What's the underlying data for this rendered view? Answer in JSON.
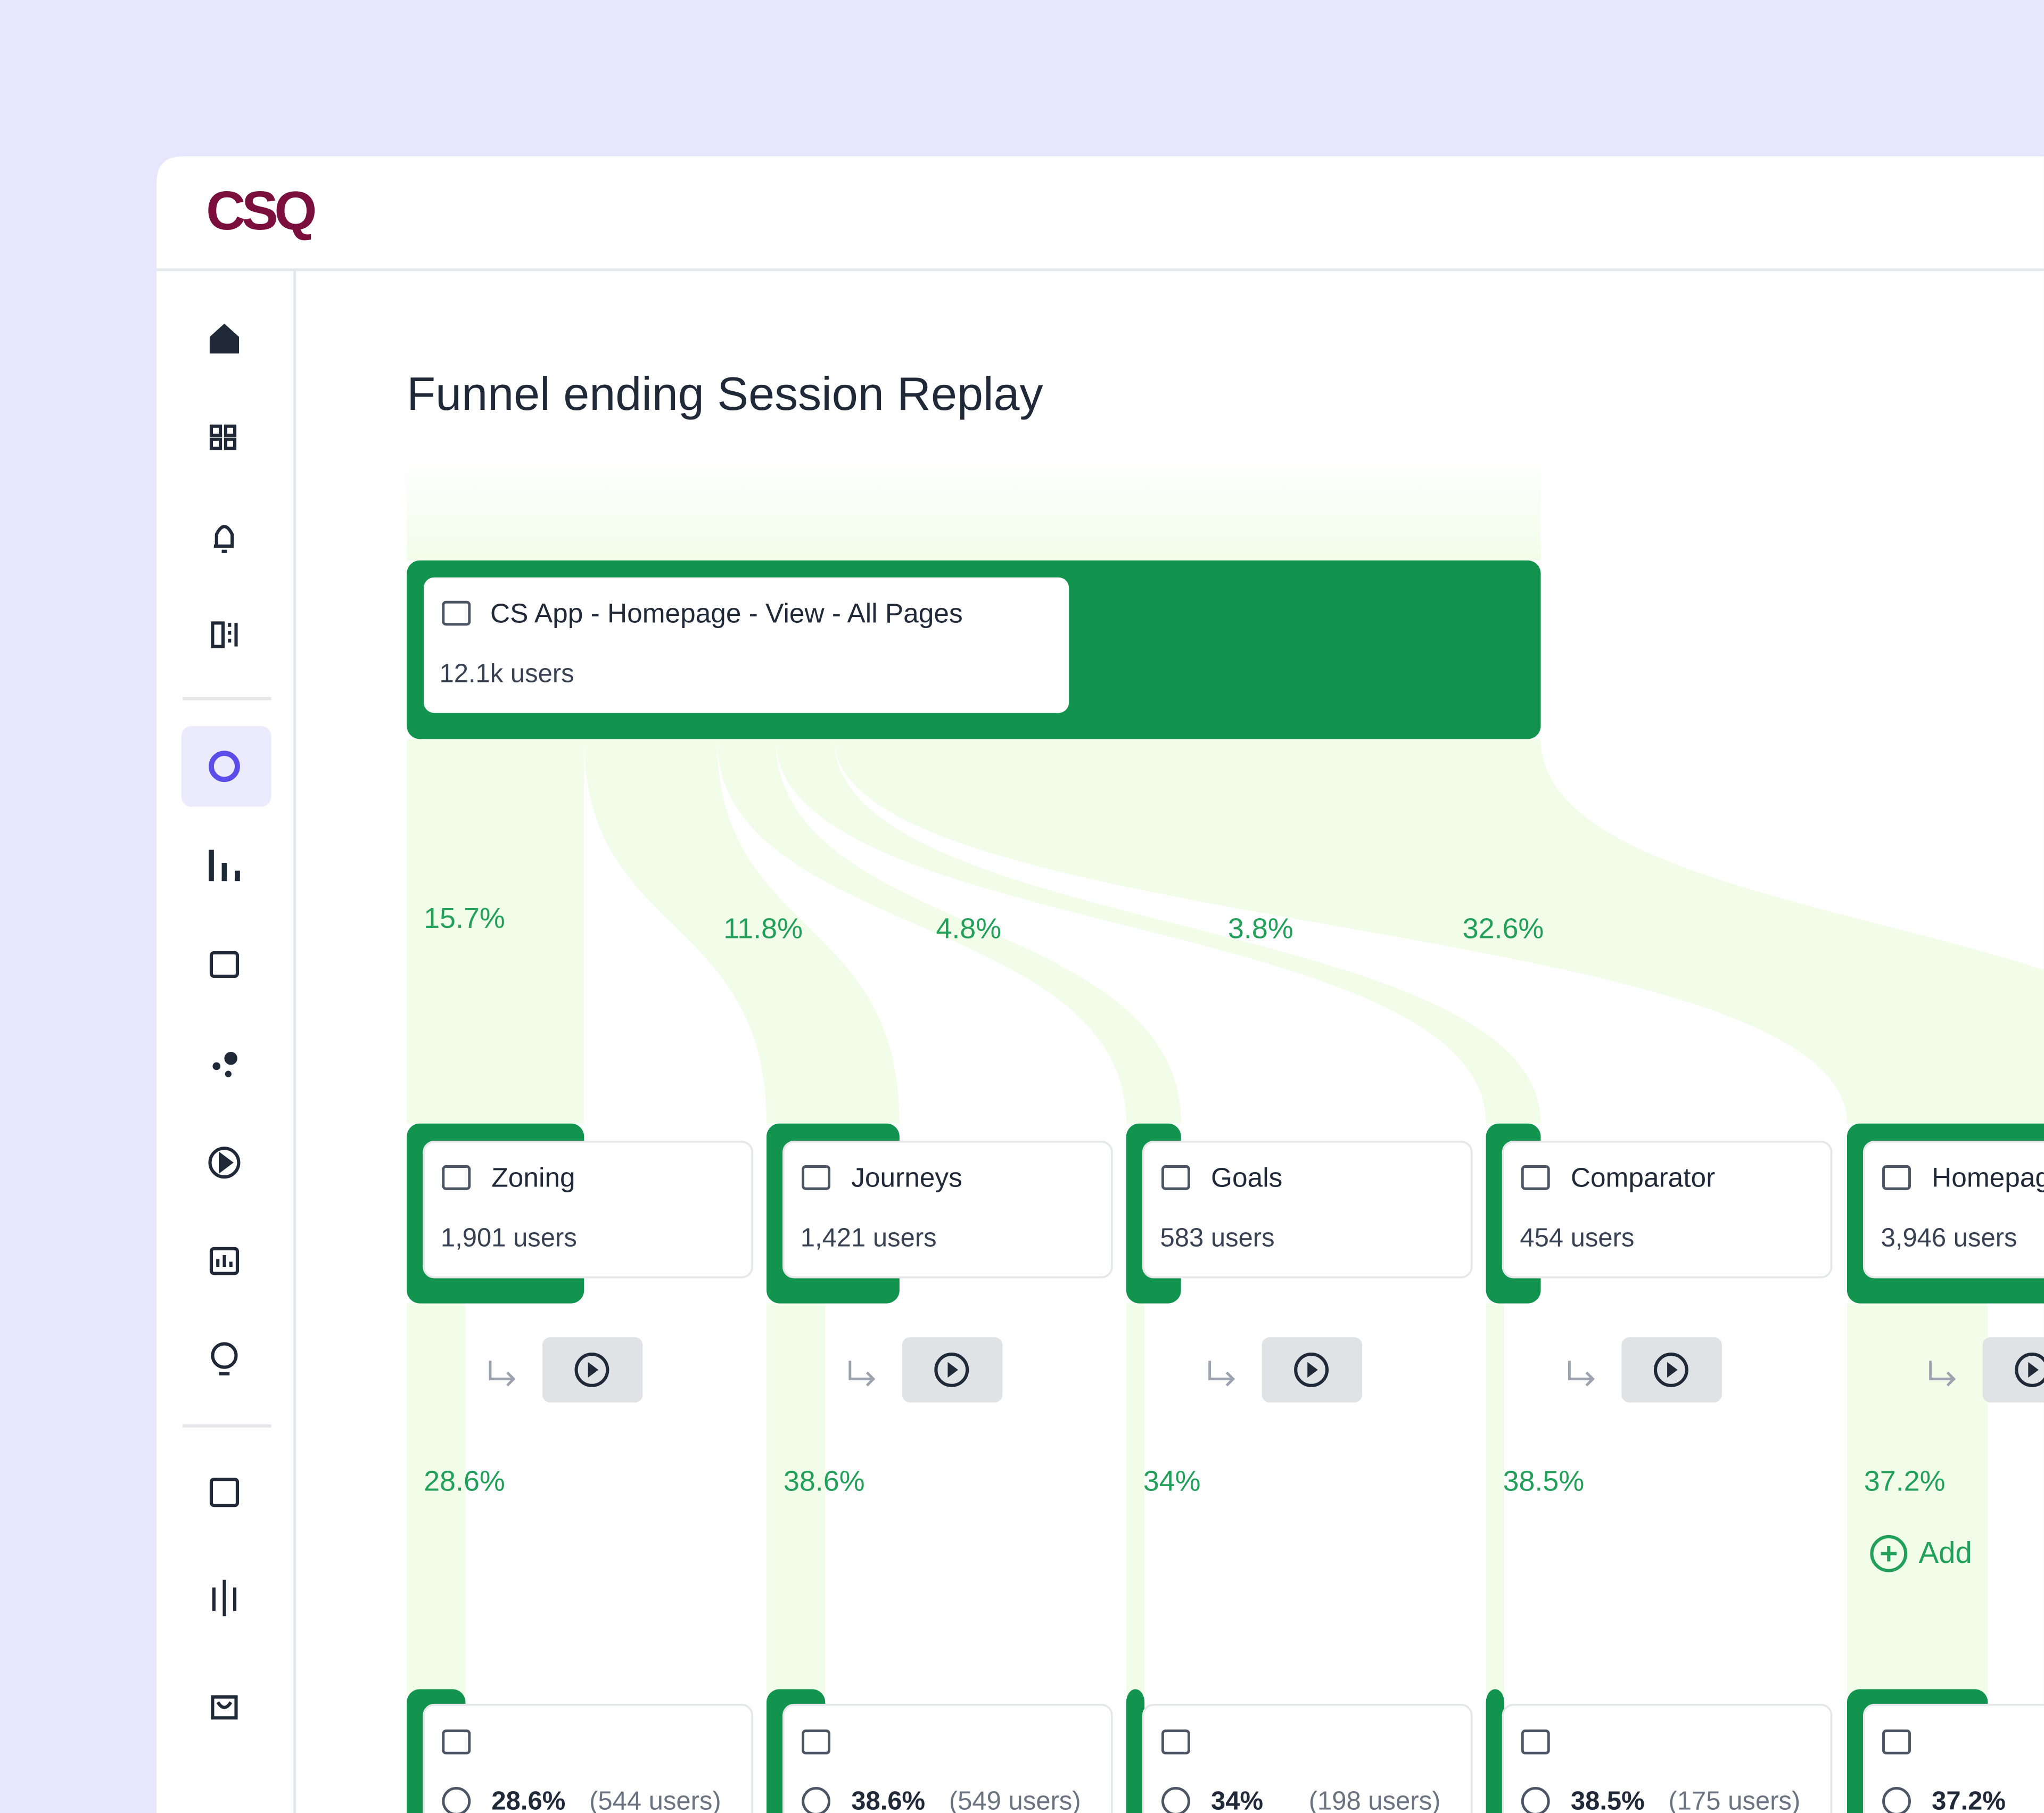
{
  "header": {
    "logo": "CSQ"
  },
  "title": "Funnel ending Session Replay",
  "start_step": {
    "name": "CS App - Homepage - View - All Pages",
    "users": "12.1k users"
  },
  "steps": [
    {
      "share": "15.7%",
      "name": "Zoning",
      "users": "1,901 users",
      "conversion": "28.6%",
      "result_rate": "28.6%",
      "result_users": "(544 users)"
    },
    {
      "share": "11.8%",
      "name": "Journeys",
      "users": "1,421 users",
      "conversion": "38.6%",
      "result_rate": "38.6%",
      "result_users": "(549 users)"
    },
    {
      "share": "4.8%",
      "name": "Goals",
      "users": "583 users",
      "conversion": "34%",
      "result_rate": "34%",
      "result_users": "(198 users)"
    },
    {
      "share": "3.8%",
      "name": "Comparator",
      "users": "454 users",
      "conversion": "38.5%",
      "result_rate": "38.5%",
      "result_users": "(175 users)"
    },
    {
      "share": "32.6%",
      "name": "Homepage",
      "users": "3,946 users",
      "conversion": "37.2%",
      "result_rate": "37.2%"
    }
  ],
  "add_button": "Add"
}
